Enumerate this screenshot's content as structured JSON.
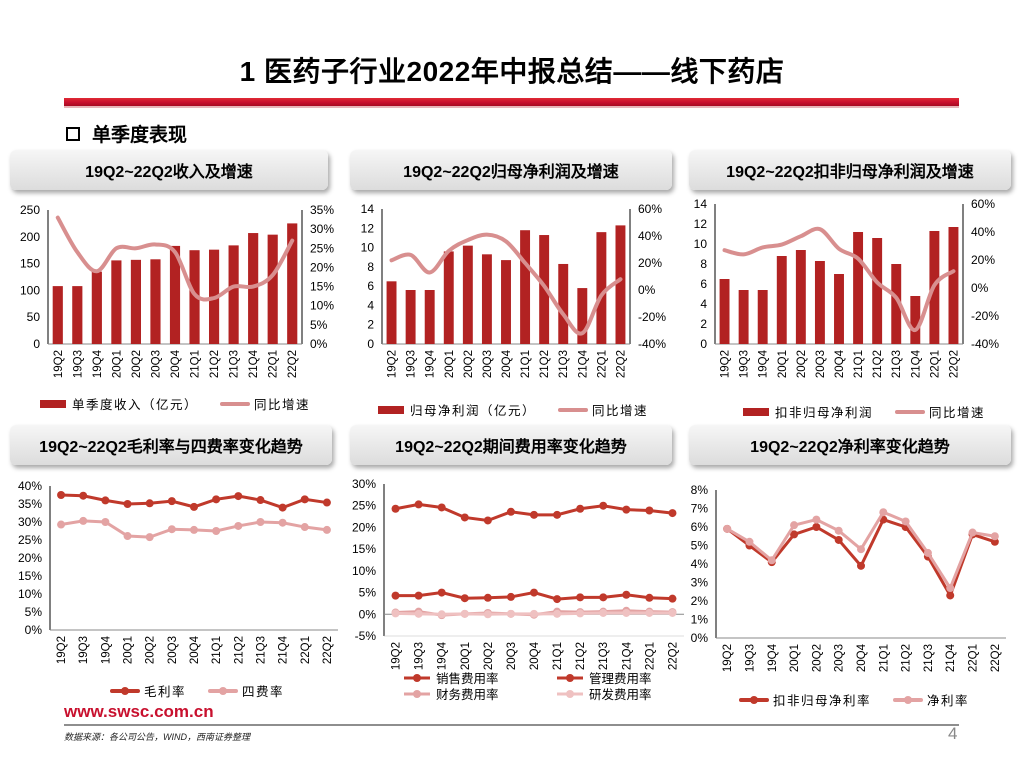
{
  "slide": {
    "title": "1 医药子行业2022年中报总结——线下药店",
    "section": "单季度表现",
    "footer_url": "www.swsc.com.cn",
    "source": "数据来源：各公司公告，WIND，西南证券整理",
    "page": "4"
  },
  "colors": {
    "bar": "#b22222",
    "line": "#d88f8f",
    "line2": "#c0392b",
    "line_light": "#e3a3a3",
    "line_lighter": "#efc1c1"
  },
  "chart_data": [
    {
      "id": "c1",
      "type": "bar+line",
      "title": "19Q2~22Q2收入及增速",
      "categories": [
        "19Q2",
        "19Q3",
        "19Q4",
        "20Q1",
        "20Q2",
        "20Q3",
        "20Q4",
        "21Q1",
        "21Q2",
        "21Q3",
        "21Q4",
        "22Q1",
        "22Q2"
      ],
      "bar_series": {
        "name": "单季度收入（亿元）",
        "values": [
          108,
          108,
          135,
          156,
          157,
          158,
          183,
          175,
          176,
          184,
          207,
          204,
          225
        ]
      },
      "line_series": [
        {
          "name": "同比增速",
          "values": [
            33,
            24,
            19,
            25,
            25,
            26,
            24,
            13,
            12,
            15,
            15,
            18,
            27
          ]
        }
      ],
      "y_left": {
        "ticks": [
          "250",
          "200",
          "150",
          "100",
          "50",
          "0"
        ],
        "min": 0,
        "max": 250
      },
      "y_right": {
        "ticks": [
          "35%",
          "30%",
          "25%",
          "20%",
          "15%",
          "10%",
          "5%",
          "0%"
        ],
        "min": 0,
        "max": 35
      }
    },
    {
      "id": "c2",
      "type": "bar+line",
      "title": "19Q2~22Q2归母净利润及增速",
      "categories": [
        "19Q2",
        "19Q3",
        "19Q4",
        "20Q1",
        "20Q2",
        "20Q3",
        "20Q4",
        "21Q1",
        "21Q2",
        "21Q3",
        "21Q4",
        "22Q1",
        "22Q2"
      ],
      "bar_series": {
        "name": "归母净利润（亿元）",
        "values": [
          6.5,
          5.6,
          5.6,
          9.6,
          10.2,
          9.3,
          8.7,
          11.8,
          11.3,
          8.3,
          5.8,
          11.6,
          12.3
        ]
      },
      "line_series": [
        {
          "name": "同比增速",
          "values": [
            22,
            26,
            13,
            29,
            37,
            41,
            36,
            20,
            3,
            -18,
            -32,
            -4,
            8
          ]
        }
      ],
      "y_left": {
        "ticks": [
          "14",
          "12",
          "10",
          "8",
          "6",
          "4",
          "2",
          "0"
        ],
        "min": 0,
        "max": 14
      },
      "y_right": {
        "ticks": [
          "60%",
          "40%",
          "20%",
          "0%",
          "-20%",
          "-40%"
        ],
        "min": -40,
        "max": 60
      }
    },
    {
      "id": "c3",
      "type": "bar+line",
      "title": "19Q2~22Q2扣非归母净利润及增速",
      "categories": [
        "19Q2",
        "19Q3",
        "19Q4",
        "20Q1",
        "20Q2",
        "20Q3",
        "20Q4",
        "21Q1",
        "21Q2",
        "21Q3",
        "21Q4",
        "22Q1",
        "22Q2"
      ],
      "bar_series": {
        "name": "扣非归母净利润",
        "values": [
          6.5,
          5.4,
          5.4,
          8.8,
          9.4,
          8.3,
          7.0,
          11.2,
          10.6,
          8.0,
          4.8,
          11.3,
          11.7
        ]
      },
      "line_series": [
        {
          "name": "同比增速",
          "values": [
            27,
            24,
            29,
            31,
            37,
            42,
            28,
            21,
            4,
            -7,
            -30,
            2,
            12
          ]
        }
      ],
      "y_left": {
        "ticks": [
          "14",
          "12",
          "10",
          "8",
          "6",
          "4",
          "2",
          "0"
        ],
        "min": 0,
        "max": 14
      },
      "y_right": {
        "ticks": [
          "60%",
          "40%",
          "20%",
          "0%",
          "-20%",
          "-40%"
        ],
        "min": -40,
        "max": 60
      }
    },
    {
      "id": "c4",
      "type": "line",
      "title": "19Q2~22Q2毛利率与四费率变化趋势",
      "categories": [
        "19Q2",
        "19Q3",
        "19Q4",
        "20Q1",
        "20Q2",
        "20Q3",
        "20Q4",
        "21Q1",
        "21Q2",
        "21Q3",
        "21Q4",
        "22Q1",
        "22Q2"
      ],
      "line_series": [
        {
          "name": "毛利率",
          "values": [
            37.5,
            37.3,
            36,
            35,
            35.2,
            35.8,
            34.2,
            36.3,
            37.2,
            36.1,
            34,
            36.3,
            35.4
          ]
        },
        {
          "name": "四费率",
          "values": [
            29.3,
            30.3,
            30,
            26.1,
            25.8,
            28,
            27.8,
            27.5,
            28.9,
            30,
            29.8,
            28.6,
            27.8
          ]
        }
      ],
      "y_left": {
        "ticks": [
          "40%",
          "35%",
          "30%",
          "25%",
          "20%",
          "15%",
          "10%",
          "5%",
          "0%"
        ],
        "min": 0,
        "max": 40
      }
    },
    {
      "id": "c5",
      "type": "line",
      "title": "19Q2~22Q2期间费用率变化趋势",
      "categories": [
        "19Q2",
        "19Q3",
        "19Q4",
        "20Q1",
        "20Q2",
        "20Q3",
        "20Q4",
        "21Q1",
        "21Q2",
        "21Q3",
        "21Q4",
        "22Q1",
        "22Q2"
      ],
      "line_series": [
        {
          "name": "销售费用率",
          "values": [
            24.3,
            25.3,
            24.6,
            22.3,
            21.6,
            23.6,
            22.9,
            22.9,
            24.3,
            25,
            24.1,
            23.9,
            23.3
          ]
        },
        {
          "name": "管理费用率",
          "values": [
            4.3,
            4.3,
            5,
            3.7,
            3.8,
            4,
            5,
            3.5,
            3.9,
            3.9,
            4.5,
            3.8,
            3.6
          ]
        },
        {
          "name": "财务费用率",
          "values": [
            0.4,
            0.6,
            -0.2,
            0.1,
            0.3,
            0.1,
            -0.1,
            0.6,
            0.5,
            0.6,
            0.8,
            0.6,
            0.5
          ]
        },
        {
          "name": "研发费用率",
          "values": [
            0.2,
            0.1,
            0,
            0.1,
            0,
            0.1,
            0.1,
            0.1,
            0.2,
            0.3,
            0.3,
            0.3,
            0.3
          ]
        }
      ],
      "y_left": {
        "ticks": [
          "30%",
          "25%",
          "20%",
          "15%",
          "10%",
          "5%",
          "0%",
          "-5%"
        ],
        "min": -5,
        "max": 30
      }
    },
    {
      "id": "c6",
      "type": "line",
      "title": "19Q2~22Q2净利率变化趋势",
      "categories": [
        "19Q2",
        "19Q3",
        "19Q4",
        "20Q1",
        "20Q2",
        "20Q3",
        "20Q4",
        "21Q1",
        "21Q2",
        "21Q3",
        "21Q4",
        "22Q1",
        "22Q2"
      ],
      "line_series": [
        {
          "name": "扣非归母净利率",
          "values": [
            5.9,
            5.0,
            4.1,
            5.6,
            6.0,
            5.3,
            3.9,
            6.4,
            6.0,
            4.4,
            2.3,
            5.6,
            5.2
          ]
        },
        {
          "name": "净利率",
          "values": [
            5.9,
            5.2,
            4.2,
            6.1,
            6.4,
            5.8,
            4.8,
            6.8,
            6.3,
            4.6,
            2.7,
            5.7,
            5.5
          ]
        }
      ],
      "y_left": {
        "ticks": [
          "8%",
          "7%",
          "6%",
          "5%",
          "4%",
          "3%",
          "2%",
          "1%",
          "0%"
        ],
        "min": 0,
        "max": 8
      }
    }
  ]
}
